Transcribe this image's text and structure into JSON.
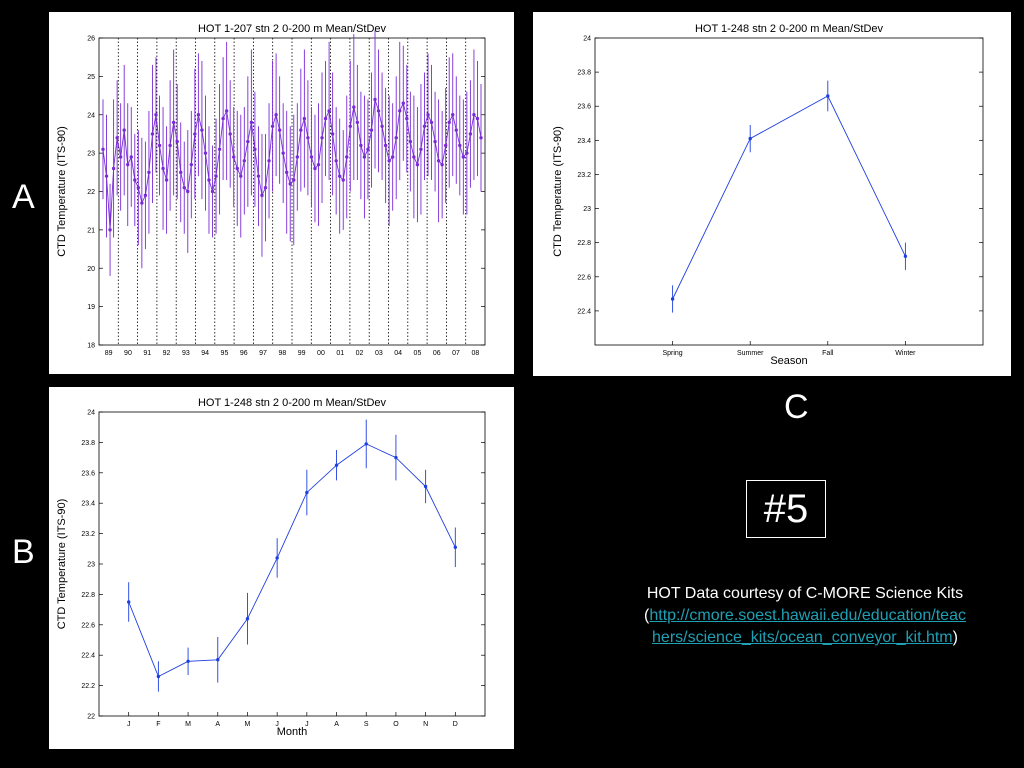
{
  "labels": {
    "a": "A",
    "b": "B",
    "c": "C"
  },
  "badge": "#5",
  "credit": {
    "line1": "HOT Data courtesy of C-MORE Science Kits",
    "open": "(",
    "link": "http://cmore.soest.hawaii.edu/education/teachers/science_kits/ocean_conveyor_kit.htm",
    "close": ")"
  },
  "chart_data": [
    {
      "id": "A",
      "type": "line",
      "title": "HOT 1-207  stn 2  0-200 m Mean/StDev",
      "xlabel": "",
      "ylabel": "CTD Temperature (ITS-90)",
      "ylim": [
        18,
        26
      ],
      "y_ticks": [
        18,
        19,
        20,
        21,
        22,
        23,
        24,
        25,
        26
      ],
      "x_ticks": [
        "89",
        "90",
        "91",
        "92",
        "93",
        "94",
        "95",
        "96",
        "97",
        "98",
        "99",
        "00",
        "01",
        "02",
        "03",
        "04",
        "05",
        "06",
        "07",
        "08"
      ],
      "color": "#7a2bd6",
      "series": [
        {
          "values": [
            23.1,
            22.4,
            21.0,
            22.6,
            23.4,
            22.9,
            23.6,
            22.7,
            22.9,
            22.3,
            22.1,
            21.7,
            21.9,
            22.5,
            23.5,
            24.0,
            23.2,
            22.6,
            22.3,
            23.2,
            23.8,
            23.3,
            22.5,
            22.1,
            22.0,
            22.7,
            23.5,
            24.0,
            23.6,
            23.0,
            22.3,
            22.0,
            22.4,
            23.1,
            23.9,
            24.1,
            23.5,
            22.9,
            22.6,
            22.4,
            22.8,
            23.3,
            23.8,
            23.1,
            22.4,
            21.9,
            22.1,
            22.8,
            23.7,
            24.0,
            23.6,
            23.0,
            22.5,
            22.2,
            22.3,
            22.9,
            23.6,
            23.9,
            23.4,
            22.9,
            22.6,
            22.7,
            23.4,
            23.9,
            24.1,
            23.5,
            22.8,
            22.4,
            22.3,
            22.9,
            23.7,
            24.2,
            23.8,
            23.2,
            22.9,
            23.1,
            23.6,
            24.4,
            24.1,
            23.7,
            23.2,
            22.8,
            22.9,
            23.4,
            24.1,
            24.3,
            23.9,
            23.3,
            22.9,
            22.7,
            23.1,
            23.7,
            24.0,
            23.8,
            23.3,
            22.8,
            22.7,
            23.2,
            23.8,
            24.0,
            23.6,
            23.2,
            22.9,
            23.0,
            23.5,
            24.0,
            23.9,
            23.4
          ],
          "errors": [
            1.3,
            1.6,
            1.2,
            1.8,
            1.5,
            1.4,
            1.7,
            1.6,
            1.3,
            1.2,
            1.5,
            1.7,
            1.4,
            1.6,
            1.8,
            1.5,
            1.3,
            1.6,
            1.4,
            1.7,
            1.9,
            1.5,
            1.3,
            1.2,
            1.6,
            1.4,
            1.7,
            1.6,
            1.8,
            1.5,
            1.4,
            1.2,
            1.5,
            1.7,
            1.6,
            1.8,
            1.4,
            1.3,
            1.5,
            1.6,
            1.4,
            1.7,
            1.9,
            1.5,
            1.3,
            1.6,
            1.4,
            1.5,
            1.7,
            1.6,
            1.4,
            1.3,
            1.6,
            1.5,
            1.7,
            1.4,
            1.6,
            1.8,
            1.5,
            1.3,
            1.4,
            1.6,
            1.7,
            1.5,
            1.8,
            1.6,
            1.4,
            1.5,
            1.3,
            1.6,
            1.7,
            1.9,
            1.5,
            1.4,
            1.6,
            1.3,
            1.5,
            1.8,
            1.6,
            1.4,
            1.5,
            1.7,
            1.4,
            1.6,
            1.8,
            1.5,
            1.4,
            1.3,
            1.6,
            1.5,
            1.7,
            1.4,
            1.6,
            1.5,
            1.3,
            1.6,
            1.4,
            1.5,
            1.7,
            1.6,
            1.4,
            1.3,
            1.5,
            1.6,
            1.4,
            1.7,
            1.5,
            1.4
          ]
        }
      ]
    },
    {
      "id": "B",
      "type": "line",
      "title": "HOT 1-248  stn 2  0-200 m Mean/StDev",
      "xlabel": "Month",
      "ylabel": "CTD Temperature (ITS-90)",
      "ylim": [
        22,
        24
      ],
      "y_ticks": [
        22,
        22.2,
        22.4,
        22.6,
        22.8,
        23,
        23.2,
        23.4,
        23.6,
        23.8,
        24
      ],
      "categories": [
        "J",
        "F",
        "M",
        "A",
        "M",
        "J",
        "J",
        "A",
        "S",
        "O",
        "N",
        "D"
      ],
      "color": "#1f3fe0",
      "series": [
        {
          "values": [
            22.75,
            22.26,
            22.36,
            22.37,
            22.64,
            23.04,
            23.47,
            23.65,
            23.79,
            23.7,
            23.51,
            23.11
          ],
          "errors": [
            0.13,
            0.1,
            0.09,
            0.15,
            0.17,
            0.13,
            0.15,
            0.1,
            0.16,
            0.15,
            0.11,
            0.13
          ]
        }
      ]
    },
    {
      "id": "C",
      "type": "line",
      "title": "HOT 1-248  stn 2  0-200 m Mean/StDev",
      "xlabel": "Season",
      "ylabel": "CTD Temperature (ITS-90)",
      "ylim": [
        22.2,
        24
      ],
      "y_ticks": [
        22.4,
        22.6,
        22.8,
        23,
        23.2,
        23.4,
        23.6,
        23.8,
        24
      ],
      "categories": [
        "Spring",
        "Summer",
        "Fall",
        "Winter"
      ],
      "color": "#1f3fe0",
      "series": [
        {
          "values": [
            22.47,
            23.41,
            23.66,
            22.72
          ],
          "errors": [
            0.08,
            0.08,
            0.09,
            0.08
          ]
        }
      ]
    }
  ]
}
